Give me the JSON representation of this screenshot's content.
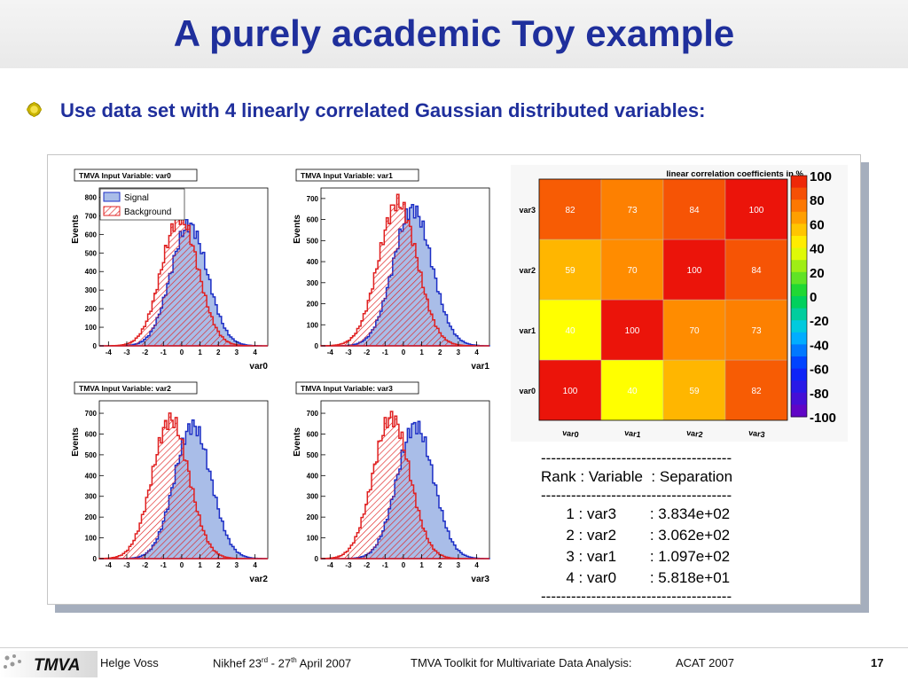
{
  "slide": {
    "title": "A purely academic Toy example",
    "bullet": "Use data set with 4 linearly correlated Gaussian distributed variables:"
  },
  "histograms": [
    {
      "title": "TMVA Input Variable: var0",
      "xlabel": "var0",
      "ylabel": "Events",
      "yticks": [
        "0",
        "100",
        "200",
        "300",
        "400",
        "500",
        "600",
        "700",
        "800"
      ],
      "ymax": 850,
      "signal_mean": 0.4,
      "background_mean": -0.1,
      "width": 1.0,
      "peak_signal": 650,
      "peak_background": 690
    },
    {
      "title": "TMVA Input Variable: var1",
      "xlabel": "var1",
      "ylabel": "Events",
      "yticks": [
        "0",
        "100",
        "200",
        "300",
        "400",
        "500",
        "600",
        "700"
      ],
      "ymax": 750,
      "signal_mean": 0.5,
      "background_mean": -0.3,
      "width": 1.05,
      "peak_signal": 650,
      "peak_background": 680
    },
    {
      "title": "TMVA Input Variable: var2",
      "xlabel": "var2",
      "ylabel": "Events",
      "yticks": [
        "0",
        "100",
        "200",
        "300",
        "400",
        "500",
        "600",
        "700"
      ],
      "ymax": 760,
      "signal_mean": 0.6,
      "background_mean": -0.6,
      "width": 1.0,
      "peak_signal": 640,
      "peak_background": 670
    },
    {
      "title": "TMVA Input Variable: var3",
      "xlabel": "var3",
      "ylabel": "Events",
      "yticks": [
        "0",
        "100",
        "200",
        "300",
        "400",
        "500",
        "600",
        "700"
      ],
      "ymax": 760,
      "signal_mean": 0.65,
      "background_mean": -0.65,
      "width": 1.0,
      "peak_signal": 640,
      "peak_background": 680
    }
  ],
  "xticks": [
    "-4",
    "-3",
    "-2",
    "-1",
    "0",
    "1",
    "2",
    "3",
    "4"
  ],
  "legend": {
    "signal": "Signal",
    "background": "Background"
  },
  "chart_data": {
    "type": "heatmap",
    "title": "linear correlation coefficients in %",
    "x": [
      "var0",
      "var1",
      "var2",
      "var3"
    ],
    "y": [
      "var0",
      "var1",
      "var2",
      "var3"
    ],
    "values": [
      [
        100,
        40,
        59,
        82
      ],
      [
        40,
        100,
        70,
        73
      ],
      [
        59,
        70,
        100,
        84
      ],
      [
        82,
        73,
        84,
        100
      ]
    ],
    "colorbar": [
      "100",
      "80",
      "60",
      "40",
      "20",
      "0",
      "-20",
      "-40",
      "-60",
      "-80",
      "-100"
    ],
    "zlim": [
      -100,
      100
    ]
  },
  "ranking": {
    "separator": "--------------------------------------",
    "header": "Rank : Variable  : Separation",
    "rows": [
      "      1 : var3        : 3.834e+02",
      "      2 : var2        : 3.062e+02",
      "      3 : var1        : 1.097e+02",
      "      4 : var0        : 5.818e+01"
    ]
  },
  "footer": {
    "logo": "TMVA",
    "author": "Helge Voss",
    "date_prefix": "Nikhef  23",
    "date_sup1": "rd",
    "date_mid": "  - 27",
    "date_sup2": "th",
    "date_suffix": " April 2007",
    "talk": "TMVA Toolkit for Multivariate Data Analysis:",
    "conf": "ACAT 2007",
    "page": "17"
  },
  "colors": {
    "title": "#1f2f9c",
    "signal_fill": "#a9bde8",
    "signal_line": "#1c2ec6",
    "background_line": "#e02020"
  }
}
